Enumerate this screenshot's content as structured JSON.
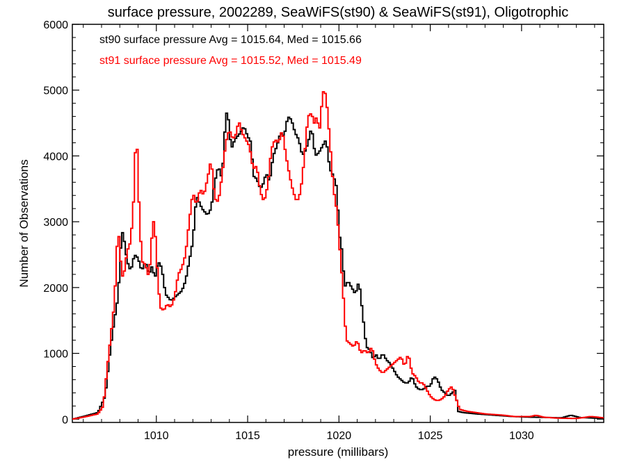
{
  "chart_data": {
    "type": "line",
    "title": "surface pressure, 2002289, SeaWiFS(st90) & SeaWiFS(st91), Oligotrophic",
    "xlabel": "pressure (millibars)",
    "ylabel": "Number of Observations",
    "xlim": [
      1005.4,
      1034.5
    ],
    "ylim": [
      -50,
      6000
    ],
    "x_ticks": [
      1010,
      1015,
      1020,
      1025,
      1030
    ],
    "y_ticks": [
      0,
      1000,
      2000,
      3000,
      4000,
      5000,
      6000
    ],
    "x_tick_labels": [
      "1010",
      "1015",
      "1020",
      "1025",
      "1030"
    ],
    "y_tick_labels": [
      "0",
      "1000",
      "2000",
      "3000",
      "4000",
      "5000",
      "6000"
    ],
    "grid": false,
    "legend_position": "top-left",
    "bin_width": 0.1,
    "series": [
      {
        "name": "st90 surface pressure Avg = 1015.64, Med = 1015.66",
        "color": "#000000",
        "points": [
          [
            1005.4,
            0
          ],
          [
            1006.0,
            40
          ],
          [
            1006.8,
            100
          ],
          [
            1007.2,
            350
          ],
          [
            1007.5,
            1100
          ],
          [
            1007.7,
            1500
          ],
          [
            1007.9,
            1850
          ],
          [
            1008.0,
            2300
          ],
          [
            1008.1,
            2900
          ],
          [
            1008.25,
            2700
          ],
          [
            1008.4,
            2400
          ],
          [
            1008.6,
            2250
          ],
          [
            1008.8,
            2500
          ],
          [
            1009.0,
            2450
          ],
          [
            1009.2,
            2250
          ],
          [
            1009.4,
            2400
          ],
          [
            1009.6,
            2200
          ],
          [
            1009.8,
            2350
          ],
          [
            1009.9,
            2100
          ],
          [
            1010.1,
            2400
          ],
          [
            1010.3,
            2300
          ],
          [
            1010.5,
            1900
          ],
          [
            1010.8,
            1800
          ],
          [
            1011.0,
            1850
          ],
          [
            1011.2,
            1900
          ],
          [
            1011.4,
            1950
          ],
          [
            1011.6,
            2100
          ],
          [
            1011.8,
            2400
          ],
          [
            1012.0,
            2700
          ],
          [
            1012.2,
            3400
          ],
          [
            1012.5,
            3200
          ],
          [
            1012.8,
            3100
          ],
          [
            1013.0,
            3200
          ],
          [
            1013.2,
            3600
          ],
          [
            1013.4,
            3850
          ],
          [
            1013.6,
            3650
          ],
          [
            1013.8,
            4600
          ],
          [
            1013.9,
            4700
          ],
          [
            1014.1,
            4100
          ],
          [
            1014.3,
            4250
          ],
          [
            1014.6,
            4350
          ],
          [
            1014.8,
            4450
          ],
          [
            1015.0,
            4300
          ],
          [
            1015.2,
            4200
          ],
          [
            1015.3,
            3700
          ],
          [
            1015.5,
            3650
          ],
          [
            1015.7,
            3500
          ],
          [
            1015.9,
            3600
          ],
          [
            1016.0,
            3750
          ],
          [
            1016.2,
            3600
          ],
          [
            1016.4,
            4000
          ],
          [
            1016.6,
            4150
          ],
          [
            1016.8,
            4350
          ],
          [
            1017.0,
            4300
          ],
          [
            1017.2,
            4600
          ],
          [
            1017.4,
            4550
          ],
          [
            1017.6,
            4350
          ],
          [
            1017.8,
            4250
          ],
          [
            1018.0,
            4000
          ],
          [
            1018.2,
            4100
          ],
          [
            1018.4,
            4300
          ],
          [
            1018.5,
            4450
          ],
          [
            1018.7,
            4000
          ],
          [
            1018.9,
            4050
          ],
          [
            1019.1,
            4150
          ],
          [
            1019.3,
            4250
          ],
          [
            1019.5,
            3800
          ],
          [
            1019.7,
            3700
          ],
          [
            1019.9,
            3500
          ],
          [
            1020.0,
            2850
          ],
          [
            1020.2,
            2500
          ],
          [
            1020.3,
            2000
          ],
          [
            1020.5,
            2100
          ],
          [
            1020.7,
            2000
          ],
          [
            1020.9,
            1900
          ],
          [
            1021.1,
            2100
          ],
          [
            1021.3,
            1600
          ],
          [
            1021.5,
            1100
          ],
          [
            1021.7,
            1050
          ],
          [
            1021.9,
            900
          ],
          [
            1022.0,
            1000
          ],
          [
            1022.2,
            900
          ],
          [
            1022.4,
            1000
          ],
          [
            1022.6,
            900
          ],
          [
            1022.8,
            850
          ],
          [
            1023.0,
            750
          ],
          [
            1023.2,
            650
          ],
          [
            1023.4,
            600
          ],
          [
            1023.6,
            550
          ],
          [
            1023.8,
            550
          ],
          [
            1024.0,
            650
          ],
          [
            1024.2,
            500
          ],
          [
            1024.4,
            450
          ],
          [
            1024.6,
            450
          ],
          [
            1024.8,
            500
          ],
          [
            1025.0,
            500
          ],
          [
            1025.2,
            650
          ],
          [
            1025.4,
            600
          ],
          [
            1025.6,
            450
          ],
          [
            1025.8,
            400
          ],
          [
            1026.0,
            350
          ],
          [
            1026.2,
            400
          ],
          [
            1026.4,
            450
          ],
          [
            1026.5,
            120
          ],
          [
            1026.8,
            100
          ],
          [
            1027.5,
            80
          ],
          [
            1028.5,
            60
          ],
          [
            1029.5,
            40
          ],
          [
            1030.5,
            30
          ],
          [
            1031.5,
            25
          ],
          [
            1032.2,
            20
          ],
          [
            1032.7,
            60
          ],
          [
            1033.2,
            25
          ],
          [
            1034.5,
            10
          ]
        ]
      },
      {
        "name": "st91 surface pressure Avg = 1015.52, Med = 1015.49",
        "color": "#ff0000",
        "points": [
          [
            1005.4,
            0
          ],
          [
            1006.0,
            30
          ],
          [
            1006.8,
            80
          ],
          [
            1007.1,
            200
          ],
          [
            1007.3,
            750
          ],
          [
            1007.5,
            1250
          ],
          [
            1007.7,
            1750
          ],
          [
            1007.8,
            2300
          ],
          [
            1007.9,
            2950
          ],
          [
            1008.0,
            2600
          ],
          [
            1008.1,
            2200
          ],
          [
            1008.2,
            2150
          ],
          [
            1008.4,
            2550
          ],
          [
            1008.6,
            2700
          ],
          [
            1008.8,
            3500
          ],
          [
            1008.9,
            4600
          ],
          [
            1009.0,
            3600
          ],
          [
            1009.2,
            2400
          ],
          [
            1009.4,
            2350
          ],
          [
            1009.6,
            2150
          ],
          [
            1009.8,
            2950
          ],
          [
            1009.9,
            3050
          ],
          [
            1010.0,
            2500
          ],
          [
            1010.2,
            1700
          ],
          [
            1010.4,
            1650
          ],
          [
            1010.6,
            1750
          ],
          [
            1010.8,
            1700
          ],
          [
            1011.0,
            1850
          ],
          [
            1011.2,
            2200
          ],
          [
            1011.4,
            2300
          ],
          [
            1011.6,
            2500
          ],
          [
            1011.8,
            3000
          ],
          [
            1012.0,
            3450
          ],
          [
            1012.2,
            3250
          ],
          [
            1012.4,
            3500
          ],
          [
            1012.6,
            3400
          ],
          [
            1012.8,
            3650
          ],
          [
            1013.0,
            3950
          ],
          [
            1013.2,
            3350
          ],
          [
            1013.4,
            3300
          ],
          [
            1013.6,
            3700
          ],
          [
            1013.8,
            4200
          ],
          [
            1014.0,
            4400
          ],
          [
            1014.2,
            4250
          ],
          [
            1014.4,
            4350
          ],
          [
            1014.5,
            4550
          ],
          [
            1014.7,
            4350
          ],
          [
            1014.9,
            4250
          ],
          [
            1015.1,
            4150
          ],
          [
            1015.3,
            3800
          ],
          [
            1015.5,
            3850
          ],
          [
            1015.7,
            3450
          ],
          [
            1015.9,
            3300
          ],
          [
            1016.1,
            3550
          ],
          [
            1016.3,
            4100
          ],
          [
            1016.5,
            4250
          ],
          [
            1016.7,
            4200
          ],
          [
            1016.9,
            4400
          ],
          [
            1017.1,
            4000
          ],
          [
            1017.3,
            3700
          ],
          [
            1017.5,
            3450
          ],
          [
            1017.7,
            3300
          ],
          [
            1017.9,
            3450
          ],
          [
            1018.1,
            3950
          ],
          [
            1018.3,
            4600
          ],
          [
            1018.5,
            4650
          ],
          [
            1018.7,
            4450
          ],
          [
            1018.8,
            4700
          ],
          [
            1018.9,
            4300
          ],
          [
            1019.0,
            4550
          ],
          [
            1019.1,
            4950
          ],
          [
            1019.2,
            5000
          ],
          [
            1019.3,
            4900
          ],
          [
            1019.5,
            4250
          ],
          [
            1019.7,
            3500
          ],
          [
            1019.9,
            3150
          ],
          [
            1020.0,
            2750
          ],
          [
            1020.2,
            2050
          ],
          [
            1020.4,
            1200
          ],
          [
            1020.6,
            1150
          ],
          [
            1020.8,
            1100
          ],
          [
            1021.0,
            1200
          ],
          [
            1021.2,
            1000
          ],
          [
            1021.4,
            1050
          ],
          [
            1021.6,
            1000
          ],
          [
            1021.8,
            1100
          ],
          [
            1022.0,
            850
          ],
          [
            1022.2,
            750
          ],
          [
            1022.4,
            700
          ],
          [
            1022.6,
            750
          ],
          [
            1022.8,
            800
          ],
          [
            1023.0,
            850
          ],
          [
            1023.2,
            900
          ],
          [
            1023.4,
            950
          ],
          [
            1023.6,
            800
          ],
          [
            1023.8,
            1000
          ],
          [
            1023.9,
            850
          ],
          [
            1024.0,
            700
          ],
          [
            1024.2,
            650
          ],
          [
            1024.4,
            550
          ],
          [
            1024.6,
            550
          ],
          [
            1024.8,
            450
          ],
          [
            1025.0,
            350
          ],
          [
            1025.2,
            300
          ],
          [
            1025.4,
            280
          ],
          [
            1025.6,
            300
          ],
          [
            1025.8,
            350
          ],
          [
            1026.0,
            450
          ],
          [
            1026.2,
            500
          ],
          [
            1026.3,
            400
          ],
          [
            1026.4,
            330
          ],
          [
            1026.6,
            150
          ],
          [
            1027.0,
            120
          ],
          [
            1027.5,
            100
          ],
          [
            1028.0,
            80
          ],
          [
            1028.5,
            70
          ],
          [
            1029.0,
            60
          ],
          [
            1029.6,
            40
          ],
          [
            1030.5,
            40
          ],
          [
            1030.8,
            60
          ],
          [
            1031.2,
            30
          ],
          [
            1032.0,
            15
          ],
          [
            1033.0,
            10
          ],
          [
            1033.8,
            40
          ],
          [
            1034.5,
            20
          ]
        ]
      }
    ]
  }
}
